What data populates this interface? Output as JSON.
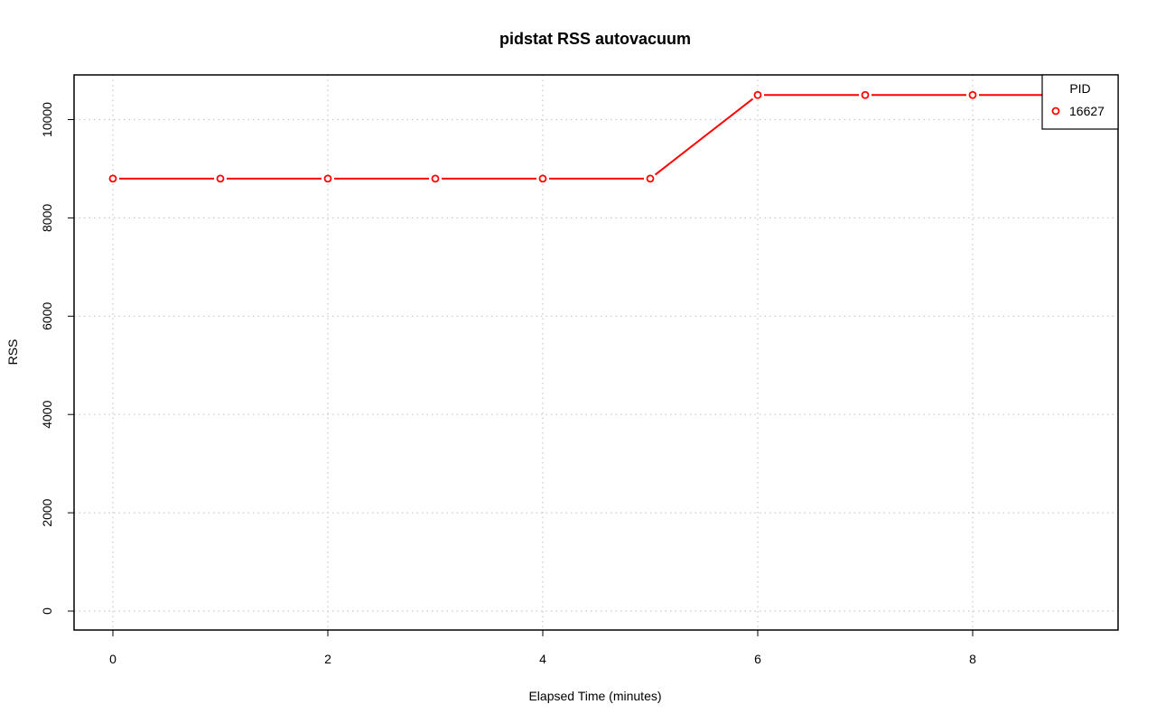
{
  "chart_data": {
    "type": "line",
    "title": "pidstat RSS autovacuum",
    "xlabel": "Elapsed Time (minutes)",
    "ylabel": "RSS",
    "xlim": [
      0,
      9
    ],
    "ylim": [
      0,
      10500
    ],
    "x_ticks": [
      0,
      2,
      4,
      6,
      8
    ],
    "y_ticks": [
      0,
      2000,
      4000,
      6000,
      8000,
      10000
    ],
    "grid": true,
    "legend": {
      "title": "PID",
      "placement": "top-right"
    },
    "series": [
      {
        "name": "16627",
        "color": "#ff0000",
        "x": [
          0,
          1,
          2,
          3,
          4,
          5,
          6,
          7,
          8,
          9
        ],
        "y": [
          8800,
          8800,
          8800,
          8800,
          8800,
          8800,
          10500,
          10500,
          10500,
          10500
        ]
      }
    ]
  }
}
